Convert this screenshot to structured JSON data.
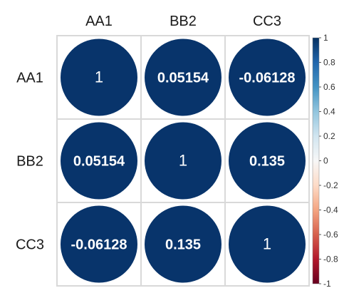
{
  "chart_data": {
    "type": "heatmap",
    "subtype": "correlation-circle-matrix",
    "title": "",
    "row_labels": [
      "AA1",
      "BB2",
      "CC3"
    ],
    "col_labels": [
      "AA1",
      "BB2",
      "CC3"
    ],
    "values": [
      [
        1,
        0.05154,
        -0.06128
      ],
      [
        0.05154,
        1,
        0.135
      ],
      [
        -0.06128,
        0.135,
        1
      ]
    ],
    "value_labels": [
      [
        "1",
        "0.05154",
        "-0.06128"
      ],
      [
        "0.05154",
        "1",
        "0.135"
      ],
      [
        "-0.06128",
        "0.135",
        "1"
      ]
    ],
    "color_scale": {
      "range": [
        -1,
        1
      ],
      "ticks": [
        "1",
        "0.8",
        "0.6",
        "0.4",
        "0.2",
        "0",
        "-0.2",
        "-0.4",
        "-0.6",
        "-0.8",
        "-1"
      ],
      "colors": [
        "#67001f",
        "#b2182b",
        "#d6604d",
        "#f4a582",
        "#fddbc7",
        "#f7f7f7",
        "#d1e5f0",
        "#92c5de",
        "#4393c3",
        "#2166ac",
        "#053061"
      ]
    },
    "circle_color": "#08346b",
    "grid": true,
    "legend_position": "right"
  }
}
